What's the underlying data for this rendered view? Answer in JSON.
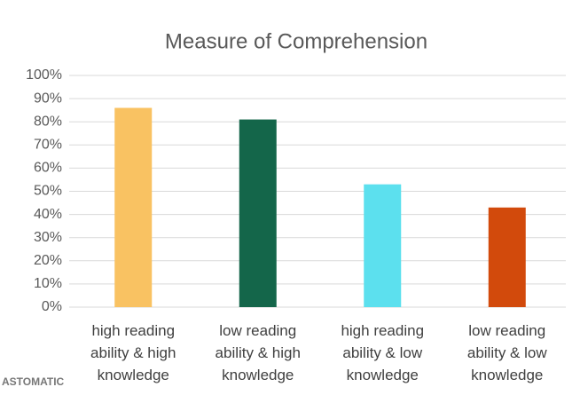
{
  "chart_data": {
    "type": "bar",
    "title": "Measure of Comprehension",
    "categories": [
      "high reading ability & high knowledge",
      "low reading ability & high knowledge",
      "high reading ability & low knowledge",
      "low reading ability & low knowledge"
    ],
    "values": [
      86,
      81,
      53,
      43
    ],
    "colors": [
      "#f9c262",
      "#14664a",
      "#5ce0ee",
      "#d24a0c"
    ],
    "ylim": [
      0,
      100
    ],
    "yticks": [
      {
        "value": 0,
        "label": "0%"
      },
      {
        "value": 10,
        "label": "10%"
      },
      {
        "value": 20,
        "label": "20%"
      },
      {
        "value": 30,
        "label": "30%"
      },
      {
        "value": 40,
        "label": "40%"
      },
      {
        "value": 50,
        "label": "50%"
      },
      {
        "value": 60,
        "label": "60%"
      },
      {
        "value": 70,
        "label": "70%"
      },
      {
        "value": 80,
        "label": "80%"
      },
      {
        "value": 90,
        "label": "90%"
      },
      {
        "value": 100,
        "label": "100%"
      }
    ],
    "grid": true,
    "watermark": "ASTOMATIC"
  }
}
